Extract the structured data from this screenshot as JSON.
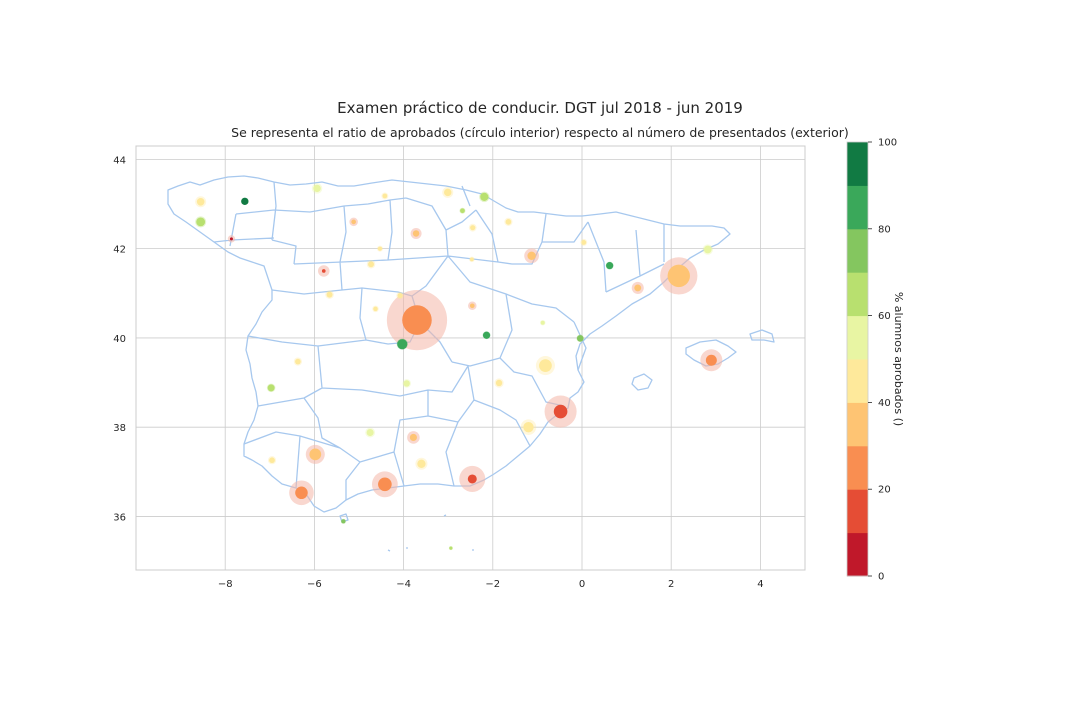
{
  "title": "Examen práctico de conducir. DGT jul 2018 - jun 2019",
  "subtitle": "Se representa el ratio de aprobados (círculo interior) respecto al número de presentados (exterior)",
  "colors": {
    "border": "#a7c8ee",
    "grid": "#cccccc",
    "halo": "#f4b6a8"
  },
  "chart_data": {
    "type": "scatter",
    "xlim": [
      -10,
      5
    ],
    "ylim": [
      34.8,
      44.3
    ],
    "x_ticks": [
      -8,
      -6,
      -4,
      -2,
      0,
      2,
      4
    ],
    "y_ticks": [
      36,
      38,
      40,
      42,
      44
    ],
    "grid": true,
    "colorbar": {
      "label": "% alumnos aprobados ()",
      "min": 0,
      "max": 100,
      "ticks": [
        0,
        20,
        40,
        60,
        80,
        100
      ],
      "bands": [
        "#c0182a",
        "#e54d35",
        "#f98e51",
        "#fec473",
        "#fee99b",
        "#e8f5a3",
        "#b8e06f",
        "#84c65f",
        "#3aa85a",
        "#117a43"
      ]
    },
    "points": [
      {
        "lon": -3.7,
        "lat": 40.4,
        "pct": 24,
        "presented": 3000
      },
      {
        "lon": 2.17,
        "lat": 41.39,
        "pct": 36,
        "presented": 1150
      },
      {
        "lon": -0.48,
        "lat": 38.35,
        "pct": 18,
        "presented": 850
      },
      {
        "lon": -2.46,
        "lat": 36.84,
        "pct": 12,
        "presented": 560
      },
      {
        "lon": -4.42,
        "lat": 36.72,
        "pct": 28,
        "presented": 550
      },
      {
        "lon": -6.29,
        "lat": 36.53,
        "pct": 26,
        "presented": 500
      },
      {
        "lon": 2.9,
        "lat": 39.5,
        "pct": 25,
        "presented": 400
      },
      {
        "lon": -5.98,
        "lat": 37.39,
        "pct": 38,
        "presented": 300
      },
      {
        "lon": -0.82,
        "lat": 39.38,
        "pct": 45,
        "presented": 300
      },
      {
        "lon": -1.2,
        "lat": 38.0,
        "pct": 45,
        "presented": 200
      },
      {
        "lon": -5.79,
        "lat": 41.5,
        "pct": 10,
        "presented": 110
      },
      {
        "lon": -1.13,
        "lat": 41.84,
        "pct": 32,
        "presented": 180
      },
      {
        "lon": -3.78,
        "lat": 37.77,
        "pct": 32,
        "presented": 130
      },
      {
        "lon": 1.25,
        "lat": 41.12,
        "pct": 33,
        "presented": 120
      },
      {
        "lon": -3.6,
        "lat": 37.18,
        "pct": 48,
        "presented": 120
      },
      {
        "lon": -3.72,
        "lat": 42.34,
        "pct": 35,
        "presented": 100
      },
      {
        "lon": -3.01,
        "lat": 43.26,
        "pct": 46,
        "presented": 100
      },
      {
        "lon": -8.55,
        "lat": 43.05,
        "pct": 48,
        "presented": 100
      },
      {
        "lon": -5.94,
        "lat": 43.35,
        "pct": 50,
        "presented": 90
      },
      {
        "lon": -4.03,
        "lat": 39.86,
        "pct": 84,
        "presented": 100
      },
      {
        "lon": -8.55,
        "lat": 42.6,
        "pct": 65,
        "presented": 100
      },
      {
        "lon": -2.19,
        "lat": 43.16,
        "pct": 62,
        "presented": 90
      },
      {
        "lon": 2.82,
        "lat": 41.98,
        "pct": 55,
        "presented": 90
      },
      {
        "lon": -7.56,
        "lat": 43.06,
        "pct": 97,
        "presented": 45
      },
      {
        "lon": -7.86,
        "lat": 42.22,
        "pct": 4,
        "presented": 45
      },
      {
        "lon": -2.46,
        "lat": 40.72,
        "pct": 30,
        "presented": 60
      },
      {
        "lon": -2.14,
        "lat": 40.06,
        "pct": 85,
        "presented": 50
      },
      {
        "lon": 0.62,
        "lat": 41.62,
        "pct": 84,
        "presented": 50
      },
      {
        "lon": -0.04,
        "lat": 39.99,
        "pct": 78,
        "presented": 45
      },
      {
        "lon": -4.75,
        "lat": 37.88,
        "pct": 52,
        "presented": 80
      },
      {
        "lon": -6.97,
        "lat": 38.88,
        "pct": 67,
        "presented": 60
      },
      {
        "lon": -3.93,
        "lat": 38.98,
        "pct": 56,
        "presented": 60
      },
      {
        "lon": -1.86,
        "lat": 38.99,
        "pct": 48,
        "presented": 70
      },
      {
        "lon": -5.66,
        "lat": 40.97,
        "pct": 48,
        "presented": 60
      },
      {
        "lon": -6.37,
        "lat": 39.47,
        "pct": 48,
        "presented": 55
      },
      {
        "lon": -6.95,
        "lat": 37.26,
        "pct": 48,
        "presented": 55
      },
      {
        "lon": -4.73,
        "lat": 41.65,
        "pct": 48,
        "presented": 60
      },
      {
        "lon": -4.42,
        "lat": 43.18,
        "pct": 47,
        "presented": 40
      },
      {
        "lon": -2.45,
        "lat": 42.47,
        "pct": 45,
        "presented": 50
      },
      {
        "lon": -1.65,
        "lat": 42.6,
        "pct": 48,
        "presented": 55
      },
      {
        "lon": -5.12,
        "lat": 42.6,
        "pct": 30,
        "presented": 60
      },
      {
        "lon": -2.68,
        "lat": 42.85,
        "pct": 62,
        "presented": 30
      },
      {
        "lon": -4.08,
        "lat": 40.95,
        "pct": 48,
        "presented": 45
      },
      {
        "lon": -4.63,
        "lat": 40.65,
        "pct": 48,
        "presented": 35
      },
      {
        "lon": -0.88,
        "lat": 40.34,
        "pct": 55,
        "presented": 25
      },
      {
        "lon": -4.53,
        "lat": 42.0,
        "pct": 48,
        "presented": 30
      },
      {
        "lon": -2.47,
        "lat": 41.76,
        "pct": 48,
        "presented": 25
      },
      {
        "lon": 0.04,
        "lat": 42.14,
        "pct": 48,
        "presented": 40
      },
      {
        "lon": -5.35,
        "lat": 35.89,
        "pct": 70,
        "presented": 20
      },
      {
        "lon": -2.94,
        "lat": 35.29,
        "pct": 62,
        "presented": 10
      }
    ]
  }
}
